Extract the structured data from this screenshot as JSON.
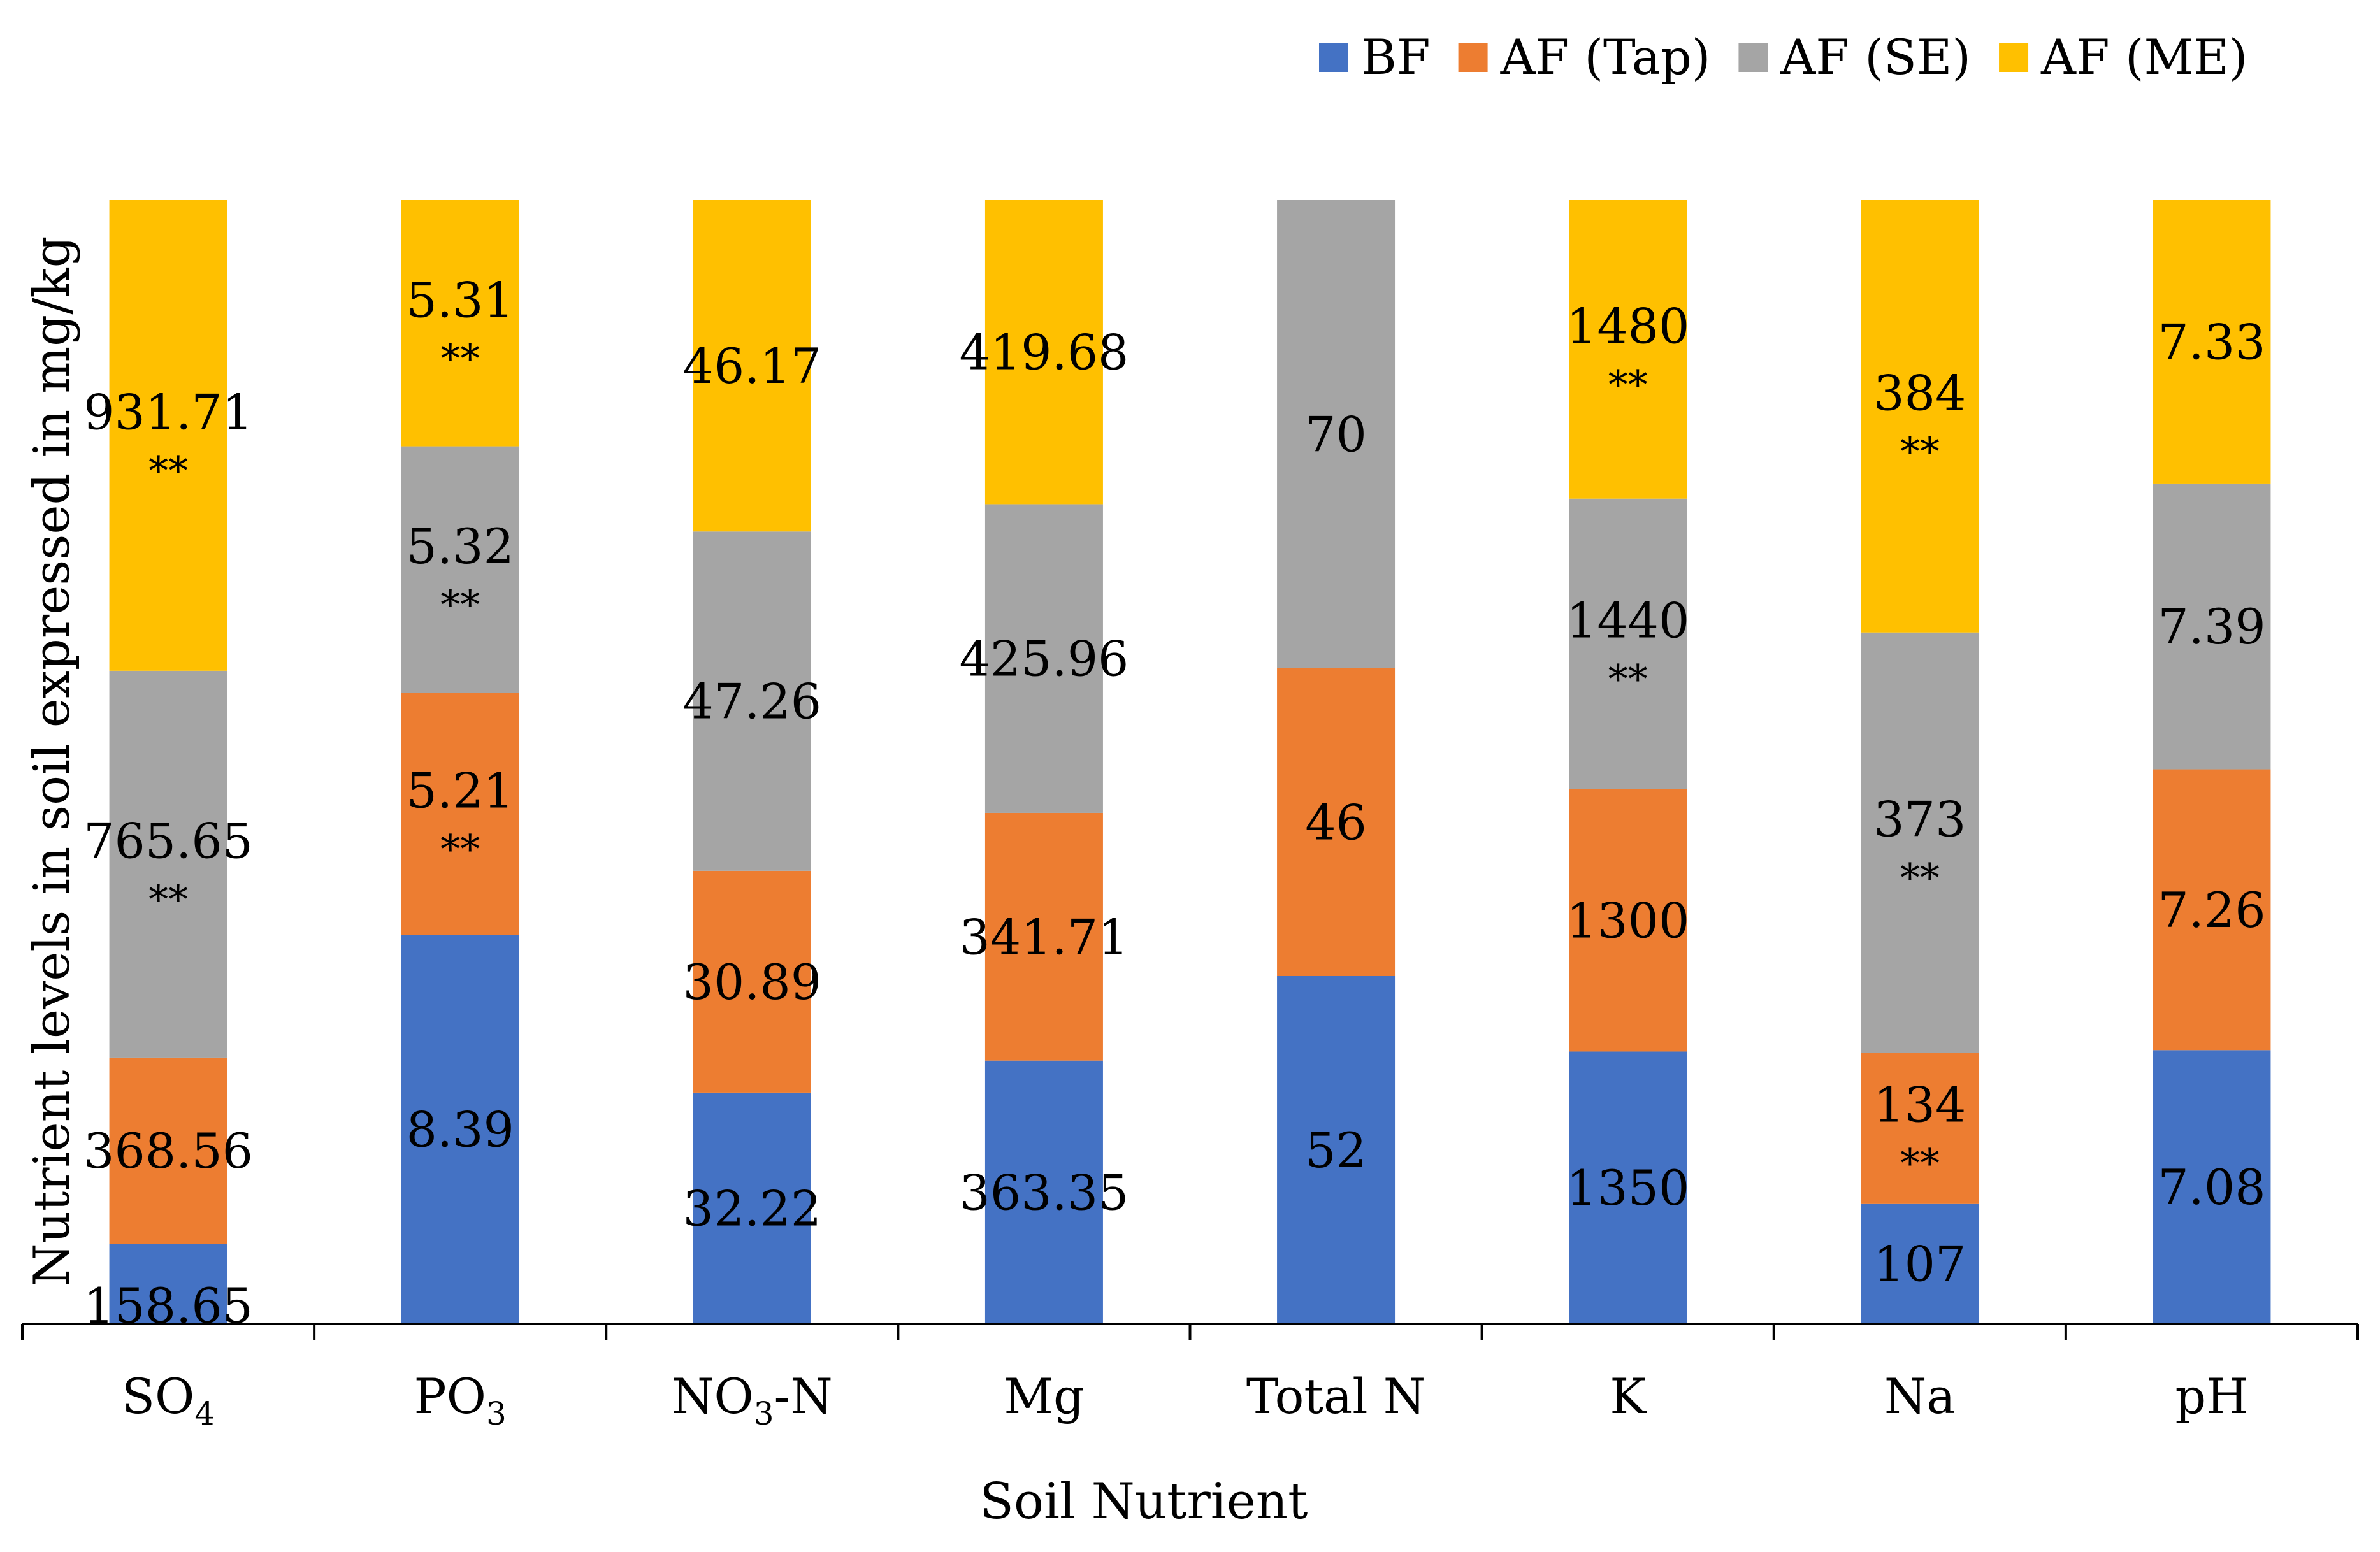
{
  "chart_data": {
    "type": "bar",
    "stacked": "percent",
    "title": "",
    "xlabel": "Soil Nutrient",
    "ylabel": "Nutrient levels in soil expressed in mg/kg",
    "categories": [
      {
        "base": "SO",
        "sub": "4",
        "tail": ""
      },
      {
        "base": "PO",
        "sub": "3",
        "tail": ""
      },
      {
        "base": "NO",
        "sub": "3",
        "tail": "-N"
      },
      {
        "base": "Mg",
        "sub": "",
        "tail": ""
      },
      {
        "base": "Total N",
        "sub": "",
        "tail": ""
      },
      {
        "base": "K",
        "sub": "",
        "tail": ""
      },
      {
        "base": "Na",
        "sub": "",
        "tail": ""
      },
      {
        "base": "pH",
        "sub": "",
        "tail": ""
      }
    ],
    "series": [
      {
        "name": "BF",
        "color": "#4472C4",
        "values": [
          158.65,
          8.39,
          32.22,
          363.35,
          52,
          1350,
          107,
          7.08
        ],
        "labels": [
          "158.65",
          "8.39",
          "32.22",
          "363.35",
          "52",
          "1350",
          "107",
          "7.08"
        ],
        "marks": [
          "",
          "",
          "",
          "",
          "",
          "",
          "",
          ""
        ]
      },
      {
        "name": "AF (Tap)",
        "color": "#ED7D31",
        "values": [
          368.56,
          5.21,
          30.89,
          341.71,
          46,
          1300,
          134,
          7.26
        ],
        "labels": [
          "368.56",
          "5.21",
          "30.89",
          "341.71",
          "46",
          "1300",
          "134",
          "7.26"
        ],
        "marks": [
          "",
          "**",
          "",
          "",
          "",
          "",
          "**",
          ""
        ]
      },
      {
        "name": "AF (SE)",
        "color": "#A5A5A5",
        "values": [
          765.65,
          5.32,
          47.26,
          425.96,
          70,
          1440,
          373,
          7.39
        ],
        "labels": [
          "765.65",
          "5.32",
          "47.26",
          "425.96",
          "70",
          "1440",
          "373",
          "7.39"
        ],
        "marks": [
          "**",
          "**",
          "",
          "",
          "",
          "**",
          "**",
          ""
        ]
      },
      {
        "name": "AF (ME)",
        "color": "#FFC000",
        "values": [
          931.71,
          5.31,
          46.17,
          419.68,
          0,
          1480,
          384,
          7.33
        ],
        "labels": [
          "931.71",
          "5.31",
          "46.17",
          "419.68",
          "",
          "1480",
          "384",
          "7.33"
        ],
        "marks": [
          "**",
          "**",
          "",
          "",
          "",
          "**",
          "**",
          ""
        ]
      }
    ],
    "legend": "top-right",
    "grid": false
  }
}
